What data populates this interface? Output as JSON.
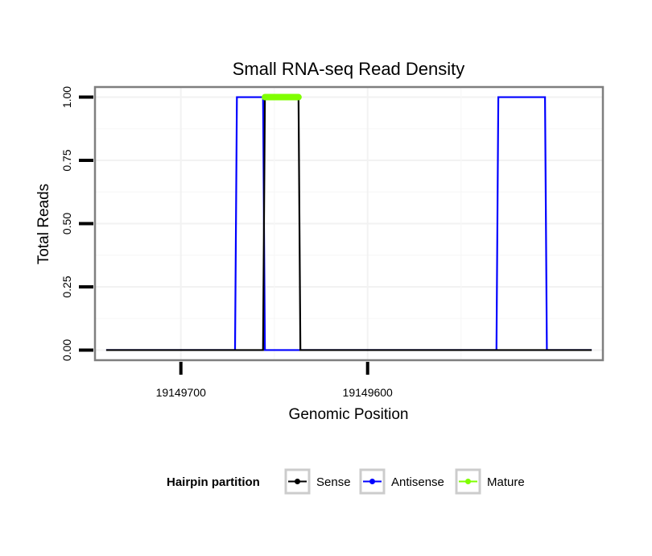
{
  "chart_data": {
    "type": "line",
    "title": "Small RNA-seq Read Density",
    "xlabel": "Genomic Position",
    "ylabel": "Total Reads",
    "x_reversed": true,
    "xlim": [
      19149746,
      19149474
    ],
    "ylim": [
      -0.04,
      1.04
    ],
    "x_ticks": [
      19149700,
      19149600
    ],
    "x_tick_labels": [
      "19149700",
      "19149600"
    ],
    "y_ticks": [
      0,
      0.25,
      0.5,
      0.75,
      1.0
    ],
    "y_tick_labels": [
      "0.00",
      "0.25",
      "0.50",
      "0.75",
      "1.00"
    ],
    "grid": true,
    "legend_position": "bottom",
    "legend_title": "Hairpin partition",
    "series": [
      {
        "name": "Antisense",
        "color": "#0000ff",
        "points": [
          [
            19149740,
            0
          ],
          [
            19149671,
            0
          ],
          [
            19149670,
            1
          ],
          [
            19149656,
            1
          ],
          [
            19149655,
            0
          ],
          [
            19149531,
            0
          ],
          [
            19149530,
            1
          ],
          [
            19149505,
            1
          ],
          [
            19149504,
            0
          ],
          [
            19149480,
            0
          ]
        ]
      },
      {
        "name": "Sense",
        "color": "#000000",
        "points": [
          [
            19149740,
            0
          ],
          [
            19149656,
            0
          ],
          [
            19149655,
            1
          ],
          [
            19149637,
            1
          ],
          [
            19149636,
            0
          ],
          [
            19149480,
            0
          ]
        ]
      },
      {
        "name": "Mature",
        "color": "#7fff00",
        "points": [
          [
            19149655,
            1
          ],
          [
            19149637,
            1
          ]
        ]
      }
    ]
  }
}
